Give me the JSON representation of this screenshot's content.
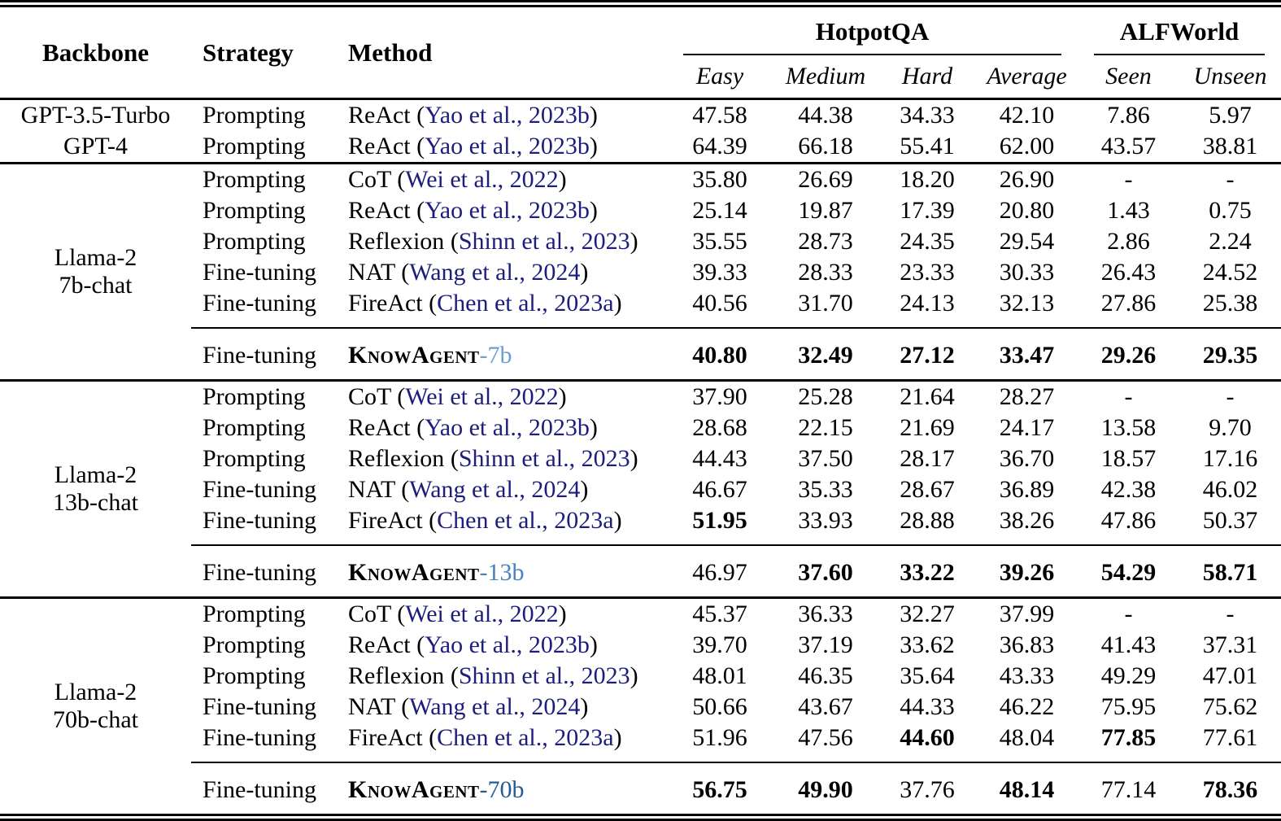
{
  "table": {
    "colors": {
      "citation": "#1d1d7c",
      "knowagent_7b": "#6c9fd4",
      "knowagent_13b": "#4a82bd",
      "knowagent_70b": "#275c92",
      "text": "#000000",
      "rule": "#000000"
    },
    "punctuation": {
      "open_paren": "(",
      "close_paren": ")"
    },
    "header": {
      "backbone": "Backbone",
      "strategy": "Strategy",
      "method": "Method",
      "groups": [
        {
          "label": "HotpotQA",
          "subcols": [
            "Easy",
            "Medium",
            "Hard",
            "Average"
          ]
        },
        {
          "label": "ALFWorld",
          "subcols": [
            "Seen",
            "Unseen"
          ]
        }
      ]
    },
    "sections": [
      {
        "backbone_lines": null,
        "rule_below": true,
        "rows": [
          {
            "backbone": "GPT-3.5-Turbo",
            "strategy": "Prompting",
            "method": "ReAct",
            "cite": "Yao et al., 2023b",
            "values": [
              "47.58",
              "44.38",
              "34.33",
              "42.10",
              "7.86",
              "5.97"
            ],
            "bold": [
              0,
              0,
              0,
              0,
              0,
              0
            ]
          },
          {
            "backbone": "GPT-4",
            "strategy": "Prompting",
            "method": "ReAct",
            "cite": "Yao et al., 2023b",
            "values": [
              "64.39",
              "66.18",
              "55.41",
              "62.00",
              "43.57",
              "38.81"
            ],
            "bold": [
              0,
              0,
              0,
              0,
              0,
              0
            ]
          }
        ],
        "knowagent_row": null
      },
      {
        "backbone_lines": [
          "Llama-2",
          "7b-chat"
        ],
        "rule_below": true,
        "rows": [
          {
            "strategy": "Prompting",
            "method": "CoT",
            "cite": "Wei et al., 2022",
            "values": [
              "35.80",
              "26.69",
              "18.20",
              "26.90",
              "-",
              "-"
            ],
            "bold": [
              0,
              0,
              0,
              0,
              0,
              0
            ]
          },
          {
            "strategy": "Prompting",
            "method": "ReAct",
            "cite": "Yao et al., 2023b",
            "values": [
              "25.14",
              "19.87",
              "17.39",
              "20.80",
              "1.43",
              "0.75"
            ],
            "bold": [
              0,
              0,
              0,
              0,
              0,
              0
            ]
          },
          {
            "strategy": "Prompting",
            "method": "Reflexion",
            "cite": "Shinn et al., 2023",
            "values": [
              "35.55",
              "28.73",
              "24.35",
              "29.54",
              "2.86",
              "2.24"
            ],
            "bold": [
              0,
              0,
              0,
              0,
              0,
              0
            ]
          },
          {
            "strategy": "Fine-tuning",
            "method": "NAT",
            "cite": "Wang et al., 2024",
            "values": [
              "39.33",
              "28.33",
              "23.33",
              "30.33",
              "26.43",
              "24.52"
            ],
            "bold": [
              0,
              0,
              0,
              0,
              0,
              0
            ]
          },
          {
            "strategy": "Fine-tuning",
            "method": "FireAct",
            "cite": "Chen et al., 2023a",
            "values": [
              "40.56",
              "31.70",
              "24.13",
              "32.13",
              "27.86",
              "25.38"
            ],
            "bold": [
              0,
              0,
              0,
              0,
              0,
              0
            ]
          }
        ],
        "knowagent_row": {
          "strategy": "Fine-tuning",
          "method_name": "KnowAgent",
          "method_suffix": "-7b",
          "suffix_color": "knowagent_7b",
          "values": [
            "40.80",
            "32.49",
            "27.12",
            "33.47",
            "29.26",
            "29.35"
          ],
          "bold": [
            1,
            1,
            1,
            1,
            1,
            1
          ]
        }
      },
      {
        "backbone_lines": [
          "Llama-2",
          "13b-chat"
        ],
        "rule_below": true,
        "rows": [
          {
            "strategy": "Prompting",
            "method": "CoT",
            "cite": "Wei et al., 2022",
            "values": [
              "37.90",
              "25.28",
              "21.64",
              "28.27",
              "-",
              "-"
            ],
            "bold": [
              0,
              0,
              0,
              0,
              0,
              0
            ]
          },
          {
            "strategy": "Prompting",
            "method": "ReAct",
            "cite": "Yao et al., 2023b",
            "values": [
              "28.68",
              "22.15",
              "21.69",
              "24.17",
              "13.58",
              "9.70"
            ],
            "bold": [
              0,
              0,
              0,
              0,
              0,
              0
            ]
          },
          {
            "strategy": "Prompting",
            "method": "Reflexion",
            "cite": "Shinn et al., 2023",
            "values": [
              "44.43",
              "37.50",
              "28.17",
              "36.70",
              "18.57",
              "17.16"
            ],
            "bold": [
              0,
              0,
              0,
              0,
              0,
              0
            ]
          },
          {
            "strategy": "Fine-tuning",
            "method": "NAT",
            "cite": "Wang et al., 2024",
            "values": [
              "46.67",
              "35.33",
              "28.67",
              "36.89",
              "42.38",
              "46.02"
            ],
            "bold": [
              0,
              0,
              0,
              0,
              0,
              0
            ]
          },
          {
            "strategy": "Fine-tuning",
            "method": "FireAct",
            "cite": "Chen et al., 2023a",
            "values": [
              "51.95",
              "33.93",
              "28.88",
              "38.26",
              "47.86",
              "50.37"
            ],
            "bold": [
              1,
              0,
              0,
              0,
              0,
              0
            ]
          }
        ],
        "knowagent_row": {
          "strategy": "Fine-tuning",
          "method_name": "KnowAgent",
          "method_suffix": "-13b",
          "suffix_color": "knowagent_13b",
          "values": [
            "46.97",
            "37.60",
            "33.22",
            "39.26",
            "54.29",
            "58.71"
          ],
          "bold": [
            0,
            1,
            1,
            1,
            1,
            1
          ]
        }
      },
      {
        "backbone_lines": [
          "Llama-2",
          "70b-chat"
        ],
        "rule_below": false,
        "rows": [
          {
            "strategy": "Prompting",
            "method": "CoT",
            "cite": "Wei et al., 2022",
            "values": [
              "45.37",
              "36.33",
              "32.27",
              "37.99",
              "-",
              "-"
            ],
            "bold": [
              0,
              0,
              0,
              0,
              0,
              0
            ]
          },
          {
            "strategy": "Prompting",
            "method": "ReAct",
            "cite": "Yao et al., 2023b",
            "values": [
              "39.70",
              "37.19",
              "33.62",
              "36.83",
              "41.43",
              "37.31"
            ],
            "bold": [
              0,
              0,
              0,
              0,
              0,
              0
            ]
          },
          {
            "strategy": "Prompting",
            "method": "Reflexion",
            "cite": "Shinn et al., 2023",
            "values": [
              "48.01",
              "46.35",
              "35.64",
              "43.33",
              "49.29",
              "47.01"
            ],
            "bold": [
              0,
              0,
              0,
              0,
              0,
              0
            ]
          },
          {
            "strategy": "Fine-tuning",
            "method": "NAT",
            "cite": "Wang et al., 2024",
            "values": [
              "50.66",
              "43.67",
              "44.33",
              "46.22",
              "75.95",
              "75.62"
            ],
            "bold": [
              0,
              0,
              0,
              0,
              0,
              0
            ]
          },
          {
            "strategy": "Fine-tuning",
            "method": "FireAct",
            "cite": "Chen et al., 2023a",
            "values": [
              "51.96",
              "47.56",
              "44.60",
              "48.04",
              "77.85",
              "77.61"
            ],
            "bold": [
              0,
              0,
              1,
              0,
              1,
              0
            ]
          }
        ],
        "knowagent_row": {
          "strategy": "Fine-tuning",
          "method_name": "KnowAgent",
          "method_suffix": "-70b",
          "suffix_color": "knowagent_70b",
          "values": [
            "56.75",
            "49.90",
            "37.76",
            "48.14",
            "77.14",
            "78.36"
          ],
          "bold": [
            1,
            1,
            0,
            1,
            0,
            1
          ]
        }
      }
    ]
  }
}
